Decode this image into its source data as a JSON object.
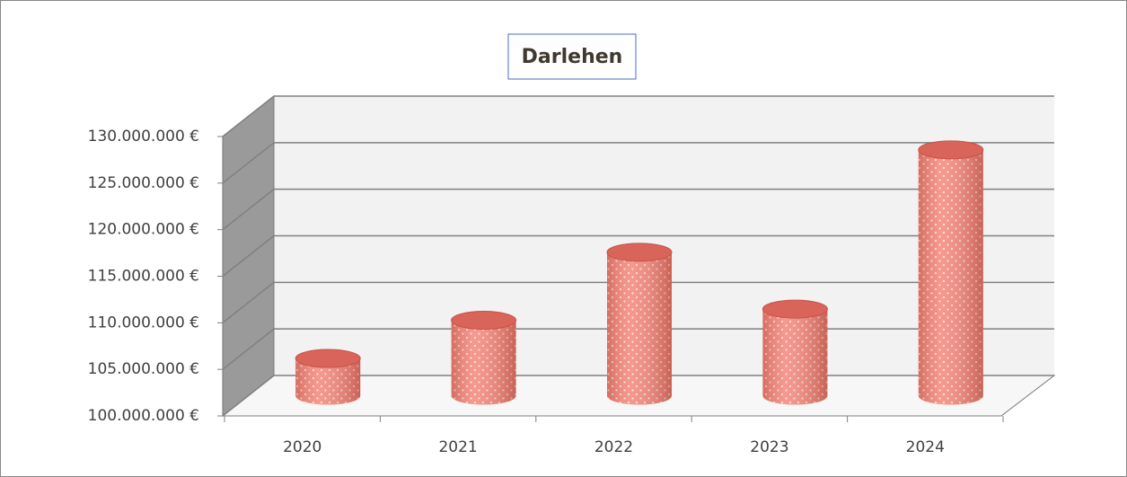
{
  "chart_data": {
    "type": "bar3d",
    "title": "Darlehen",
    "categories": [
      "2020",
      "2021",
      "2022",
      "2023",
      "2024"
    ],
    "values": [
      104000000,
      108100000,
      115400000,
      109300000,
      126400000
    ],
    "color": "#f4877a",
    "ylim": [
      100000000,
      130000000
    ],
    "yticks": [
      {
        "value": 100000000,
        "label": "100.000.000 €"
      },
      {
        "value": 105000000,
        "label": "105.000.000 €"
      },
      {
        "value": 110000000,
        "label": "110.000.000 €"
      },
      {
        "value": 115000000,
        "label": "115.000.000 €"
      },
      {
        "value": 120000000,
        "label": "120.000.000 €"
      },
      {
        "value": 125000000,
        "label": "125.000.000 €"
      },
      {
        "value": 130000000,
        "label": "130.000.000 €"
      }
    ],
    "grid": true
  }
}
